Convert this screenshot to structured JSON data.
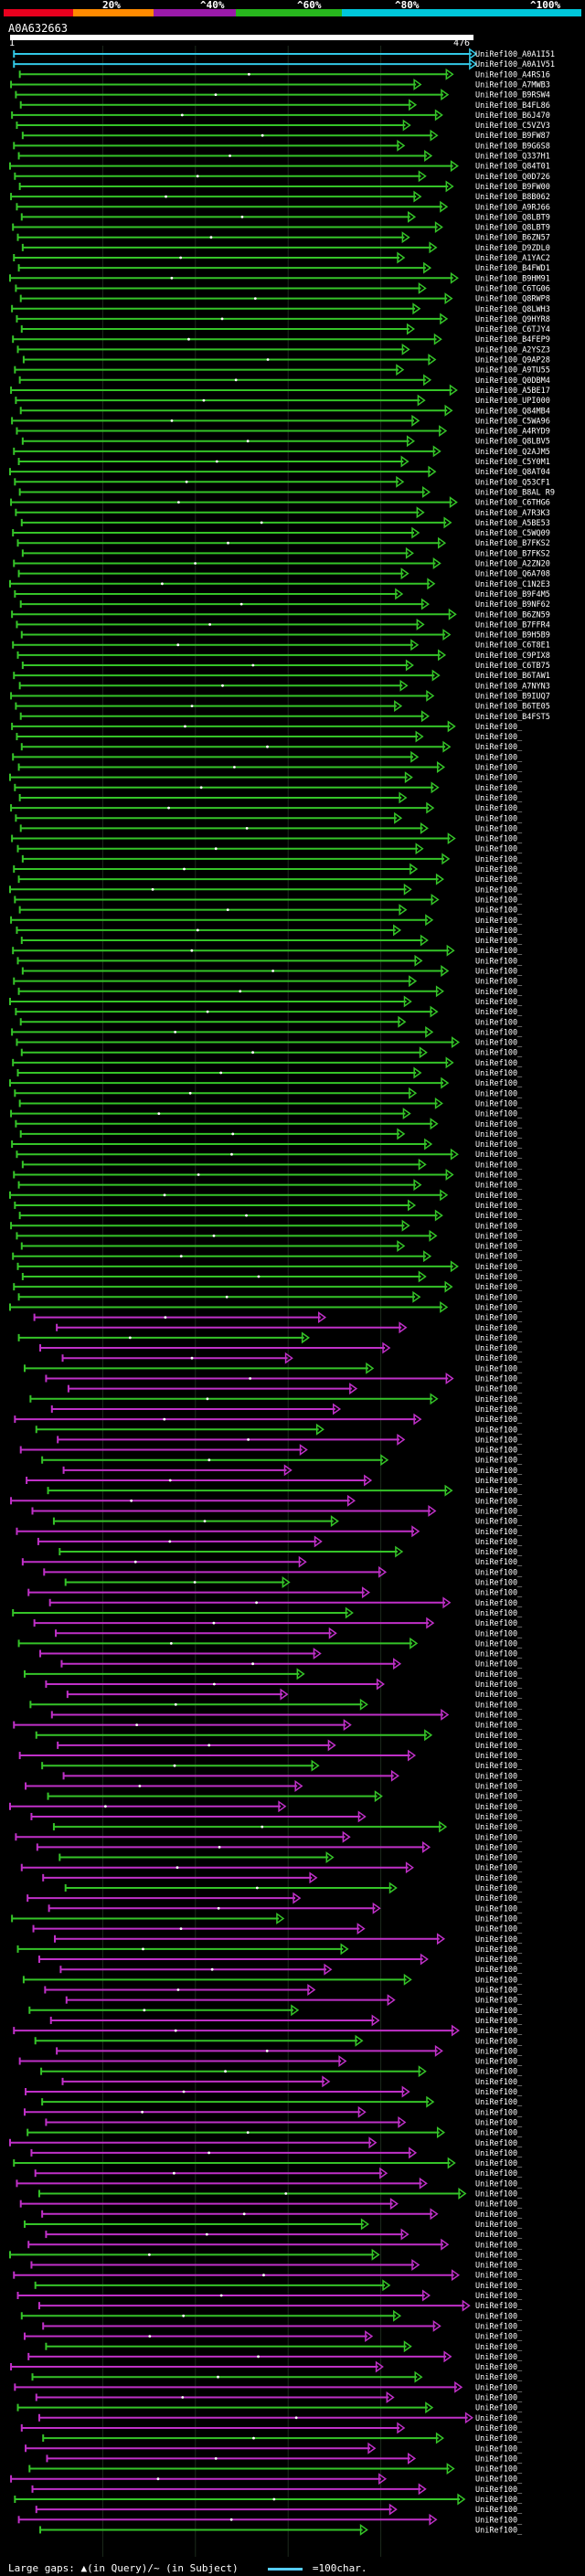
{
  "legend": {
    "labels": [
      "20%",
      "^40%",
      "^60%",
      "^80%",
      "^100%"
    ],
    "colors": [
      "#e8001e",
      "#ff8a00",
      "#9b1aaa",
      "#27b71d",
      "#00c8dc"
    ]
  },
  "query": {
    "id": "A0A632663",
    "start": "1",
    "end": "476"
  },
  "chart_data": {
    "type": "alignment",
    "query_length": 476,
    "hit_count": 244,
    "subject_prefix": "UniRef100_",
    "subjects_listed": [
      "UniRef100_A0A1I51",
      "UniRef100_A0A1V51",
      "UniRef100_A4RS16",
      "UniRef100_A7MWB3",
      "UniRef100_B9RSW4",
      "UniRef100_B4FL86",
      "UniRef100_B6J470",
      "UniRef100_C5VZV3",
      "UniRef100_B9FW87",
      "UniRef100_B9G6S8",
      "UniRef100_Q337H1",
      "UniRef100_Q84T01",
      "UniRef100_Q0D726",
      "UniRef100_B9FW00",
      "UniRef100_B8B062",
      "UniRef100_A9RJ66",
      "UniRef100_Q8LBT9",
      "UniRef100_Q8LBT9",
      "UniRef100_B6ZN57",
      "UniRef100_D9ZDL0",
      "UniRef100_A1YAC2",
      "UniRef100_B4FWD1",
      "UniRef100_B9HM91",
      "UniRef100_C6TG06",
      "UniRef100_Q8RWP8",
      "UniRef100_Q8LWH3",
      "UniRef100_Q9HYR8",
      "UniRef100_C6TJY4",
      "UniRef100_B4FEP9",
      "UniRef100_A2YSZ3",
      "UniRef100_Q9AP28",
      "UniRef100_A9TU55",
      "UniRef100_Q0DBM4",
      "UniRef100_A5BE17",
      "UniRef100_UPI000",
      "UniRef100_Q84MB4",
      "UniRef100_C5WA96",
      "UniRef100_A4RYD9",
      "UniRef100_Q8LBV5",
      "UniRef100_Q2AJM5",
      "UniRef100_C5Y0M1",
      "UniRef100_Q8AT04",
      "UniRef100_Q53CF1",
      "UniRef100_B8AL R9",
      "UniRef100_C6THG6",
      "UniRef100_A7R3K3",
      "UniRef100_A5BE53",
      "UniRef100_C5WQ09",
      "UniRef100_B7FKS2",
      "UniRef100_B7FKS2",
      "UniRef100_A2ZN20",
      "UniRef100_Q6A708",
      "UniRef100_C1N2E3",
      "UniRef100_B9F4M5",
      "UniRef100_B9NF62",
      "UniRef100_B6ZN59",
      "UniRef100_B7FFR4",
      "UniRef100_B9H5B9",
      "UniRef100_C6T8E1",
      "UniRef100_C9PIX8",
      "UniRef100_C6TB75",
      "UniRef100_B6TAW1",
      "UniRef100_A7NYN3",
      "UniRef100_B9IUQ7",
      "UniRef100_B6TE05",
      "UniRef100_B4FST5"
    ]
  }
}
